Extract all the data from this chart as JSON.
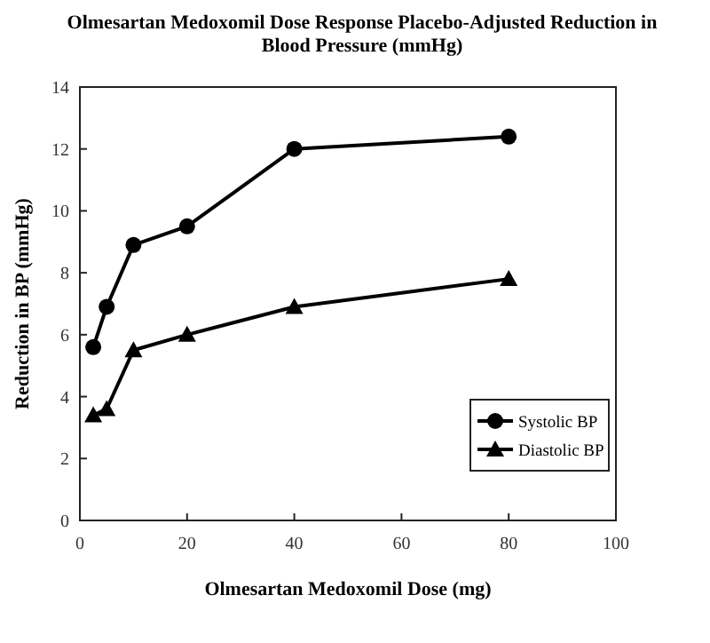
{
  "chart_data": {
    "type": "line",
    "title": "Olmesartan Medoxomil Dose Response Placebo-Adjusted Reduction in Blood Pressure (mmHg)",
    "xlabel": "Olmesartan Medoxomil Dose (mg)",
    "ylabel": "Reduction in BP (mmHg)",
    "x": [
      2.5,
      5,
      10,
      20,
      40,
      80
    ],
    "series": [
      {
        "name": "Systolic BP",
        "color": "#000000",
        "marker": "circle",
        "values": [
          5.6,
          6.9,
          8.9,
          9.5,
          12.0,
          12.4
        ]
      },
      {
        "name": "Diastolic BP",
        "color": "#000000",
        "marker": "triangle",
        "values": [
          3.4,
          3.6,
          5.5,
          6.0,
          6.9,
          7.8
        ]
      }
    ],
    "xlim": [
      0,
      100
    ],
    "xticks": [
      0,
      20,
      40,
      60,
      80,
      100
    ],
    "ylim": [
      0,
      14
    ],
    "yticks": [
      0,
      2,
      4,
      6,
      8,
      10,
      12,
      14
    ],
    "grid": false,
    "legend": "bottom right"
  }
}
